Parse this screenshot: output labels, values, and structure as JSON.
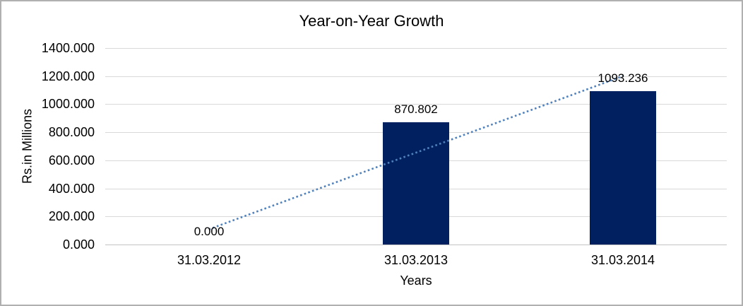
{
  "chart_data": {
    "type": "bar",
    "title": "Year-on-Year Growth",
    "xlabel": "Years",
    "ylabel": "Rs.in Millions",
    "categories": [
      "31.03.2012",
      "31.03.2013",
      "31.03.2014"
    ],
    "values": [
      0,
      870.802,
      1093.236
    ],
    "data_labels": [
      "0.000",
      "870.802",
      "1093.236"
    ],
    "ylim": [
      0,
      1400
    ],
    "ytick_step": 200,
    "ytick_labels": [
      "0.000",
      "200.000",
      "400.000",
      "600.000",
      "800.000",
      "1000.000",
      "1200.000",
      "1400.000"
    ],
    "grid": "horizontal",
    "legend": "none",
    "series": [
      {
        "name": "Year-on-Year Growth",
        "values": [
          0,
          870.802,
          1093.236
        ]
      }
    ],
    "trendline": {
      "fit": "linear",
      "style": "dotted"
    },
    "colors": {
      "bar": "#002060",
      "trendline": "#4f81bd",
      "gridline": "#d9d9d9",
      "axis_line": "#c3c3c3",
      "text": "#000000",
      "border": "#b0b0b0",
      "background": "#ffffff"
    }
  }
}
